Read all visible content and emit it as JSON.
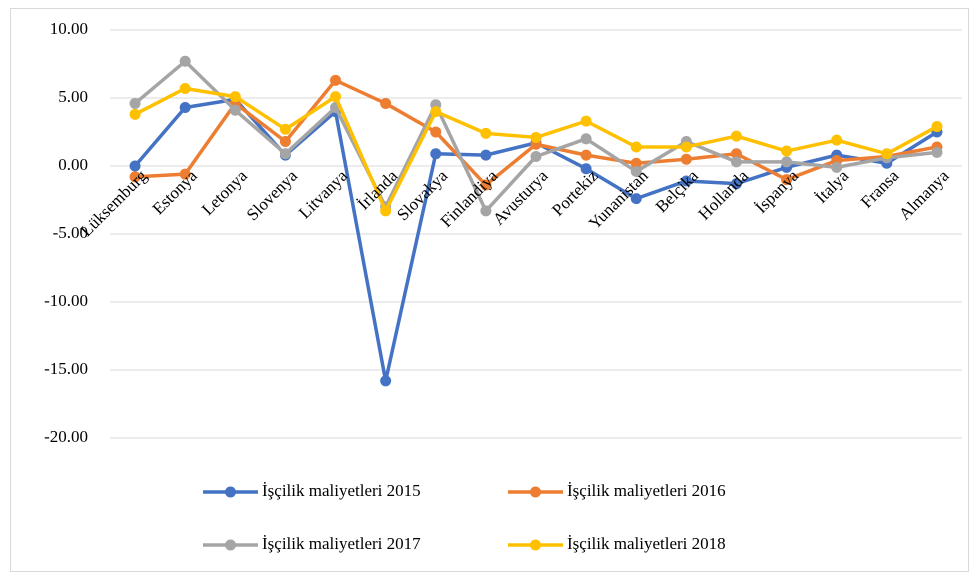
{
  "chart_data": {
    "type": "line",
    "categories": [
      "Lüksemburg",
      "Estonya",
      "Letonya",
      "Slovenya",
      "Litvanya",
      "İrlanda",
      "Slovakya",
      "Finlandiya",
      "Avusturya",
      "Portekiz",
      "Yunanistan",
      "Belçika",
      "Hollanda",
      "İspanya",
      "İtalya",
      "Fransa",
      "Almanya"
    ],
    "series": [
      {
        "name": "İşçilik maliyetleri 2015",
        "color": "#4472c4",
        "values": [
          0.0,
          4.3,
          4.9,
          0.8,
          4.0,
          -15.8,
          0.9,
          0.8,
          1.7,
          -0.2,
          -2.4,
          -1.1,
          -1.3,
          -0.1,
          0.8,
          0.2,
          2.5
        ]
      },
      {
        "name": "İşçilik maliyetleri 2016",
        "color": "#ed7d31",
        "values": [
          -0.8,
          -0.6,
          4.6,
          1.8,
          6.3,
          4.6,
          2.5,
          -1.4,
          1.6,
          0.8,
          0.2,
          0.5,
          0.9,
          -1.0,
          0.4,
          0.7,
          1.4
        ]
      },
      {
        "name": "İşçilik maliyetleri 2017",
        "color": "#a5a5a5",
        "values": [
          4.6,
          7.7,
          4.1,
          0.9,
          4.3,
          -3.0,
          4.5,
          -3.3,
          0.7,
          2.0,
          -0.4,
          1.8,
          0.3,
          0.3,
          -0.1,
          0.6,
          1.0
        ]
      },
      {
        "name": "İşçilik maliyetleri 2018",
        "color": "#ffc000",
        "values": [
          3.8,
          5.7,
          5.1,
          2.7,
          5.1,
          -3.3,
          4.0,
          2.4,
          2.1,
          3.3,
          1.4,
          1.4,
          2.2,
          1.1,
          1.9,
          0.9,
          2.9
        ]
      }
    ],
    "ylim": [
      -20,
      10
    ],
    "yticks": [
      {
        "value": -20,
        "label": "-20.00"
      },
      {
        "value": -15,
        "label": "-15.00"
      },
      {
        "value": -10,
        "label": "-10.00"
      },
      {
        "value": -5,
        "label": "-5.00"
      },
      {
        "value": 0,
        "label": "0.00"
      },
      {
        "value": 5,
        "label": "5.00"
      },
      {
        "value": 10,
        "label": "10.00"
      }
    ],
    "grid": true,
    "legend": "bottom"
  }
}
